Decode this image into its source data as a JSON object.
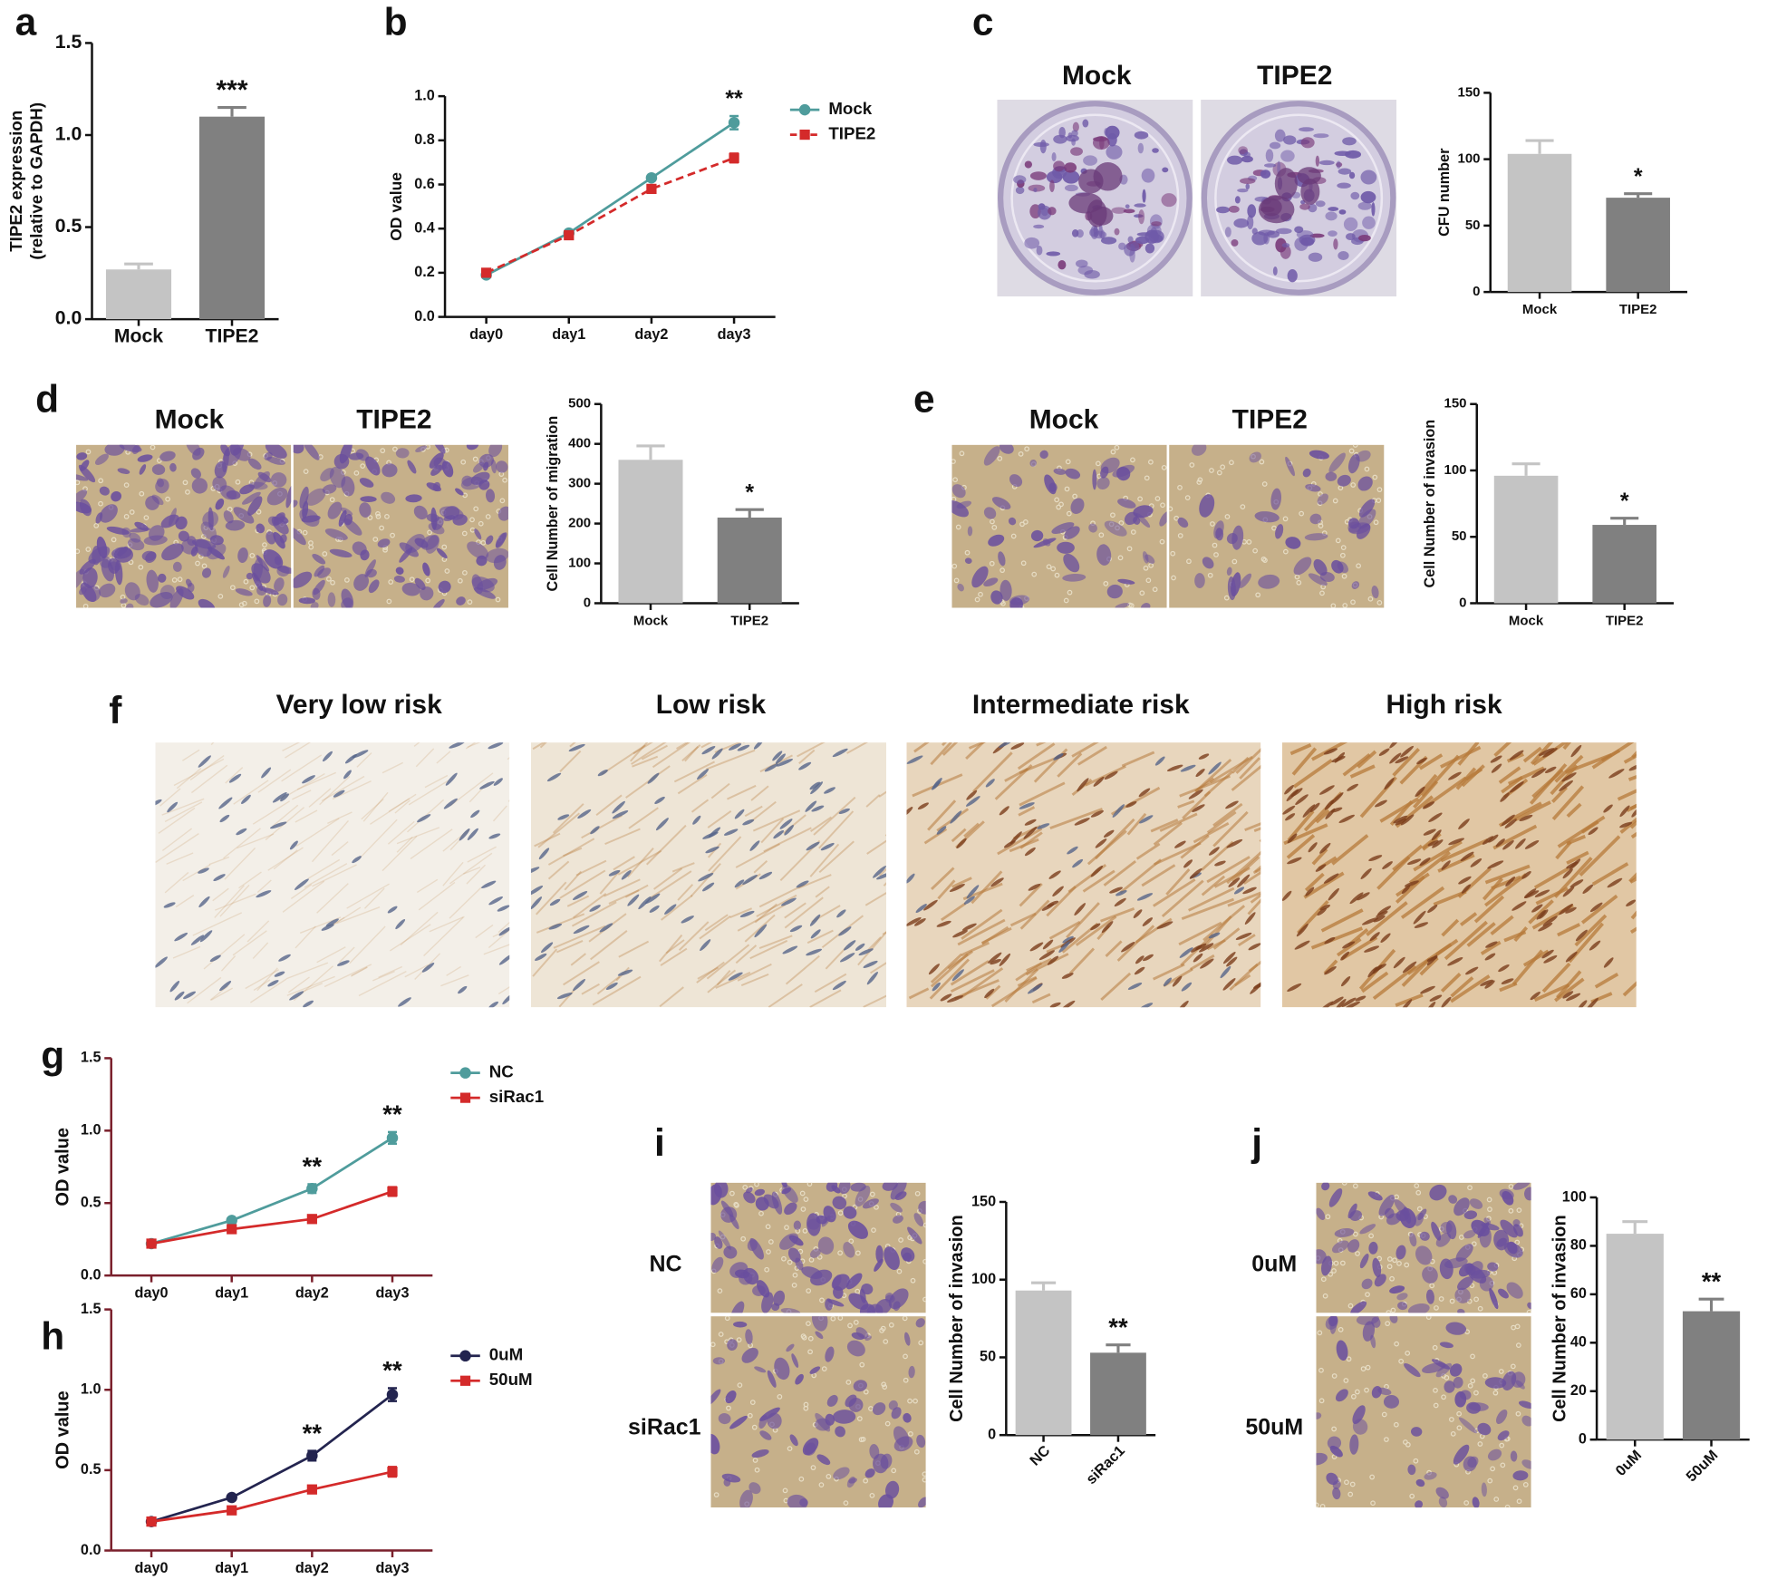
{
  "panel_labels": [
    "a",
    "b",
    "c",
    "d",
    "e",
    "f",
    "g",
    "h",
    "i",
    "j"
  ],
  "image_captions": {
    "c": [
      "Mock",
      "TIPE2"
    ],
    "d": [
      "Mock",
      "TIPE2"
    ],
    "e": [
      "Mock",
      "TIPE2"
    ],
    "f": [
      "Very low risk",
      "Low risk",
      "Intermediate risk",
      "High risk"
    ],
    "i": [
      "NC",
      "siRac1"
    ],
    "j": [
      "0uM",
      "50uM"
    ]
  },
  "chart_data": [
    {
      "type": "bar",
      "categories": [
        "Mock",
        "TIPE2"
      ],
      "values": [
        0.27,
        1.1
      ],
      "errors": [
        0.03,
        0.05
      ],
      "colors": [
        "#c4c4c4",
        "#808080"
      ],
      "ylim": [
        0,
        1.5
      ],
      "yticks": [
        {
          "value": 0,
          "label": "0.0"
        },
        0.5,
        {
          "value": 1,
          "label": "1.0"
        },
        1.5
      ],
      "ylabel": [
        "TIPE2 expression",
        "(relative to GAPDH)"
      ],
      "sig_labels": [
        null,
        "***"
      ]
    },
    {
      "type": "line",
      "categories": [
        "day0",
        "day1",
        "day2",
        "day3"
      ],
      "series": [
        {
          "name": "Mock",
          "color": "#4f9c9c",
          "marker": "circle",
          "values": [
            0.19,
            0.38,
            0.63,
            0.88
          ],
          "errors": [
            0.01,
            0.01,
            0.01,
            0.03
          ]
        },
        {
          "name": "TIPE2",
          "color": "#d42a2a",
          "marker": "square",
          "dashed": true,
          "values": [
            0.2,
            0.37,
            0.58,
            0.72
          ],
          "errors": [
            0.01,
            0.01,
            0.01,
            0.02
          ]
        }
      ],
      "ylim": [
        0,
        1
      ],
      "yticks": [
        {
          "value": 0,
          "label": "0.0"
        },
        0.2,
        0.4,
        0.6,
        0.8,
        {
          "value": 1,
          "label": "1.0"
        }
      ],
      "ylabel": "OD value",
      "sig_labels": [
        null,
        null,
        null,
        "**"
      ]
    },
    {
      "type": "bar",
      "categories": [
        "Mock",
        "TIPE2"
      ],
      "values": [
        104,
        71
      ],
      "errors": [
        10,
        3
      ],
      "colors": [
        "#c4c4c4",
        "#808080"
      ],
      "ylim": [
        0,
        150
      ],
      "yticks": [
        0,
        50,
        100,
        150
      ],
      "ylabel": "CFU number",
      "sig_labels": [
        null,
        "*"
      ]
    },
    {
      "type": "bar",
      "categories": [
        "Mock",
        "TIPE2"
      ],
      "values": [
        360,
        215
      ],
      "errors": [
        35,
        20
      ],
      "colors": [
        "#c4c4c4",
        "#808080"
      ],
      "ylim": [
        0,
        500
      ],
      "yticks": [
        0,
        100,
        200,
        300,
        400,
        500
      ],
      "ylabel": "Cell Number of migration",
      "sig_labels": [
        null,
        "*"
      ]
    },
    {
      "type": "bar",
      "categories": [
        "Mock",
        "TIPE2"
      ],
      "values": [
        96,
        59
      ],
      "errors": [
        9,
        5
      ],
      "colors": [
        "#c4c4c4",
        "#808080"
      ],
      "ylim": [
        0,
        150
      ],
      "yticks": [
        0,
        50,
        100,
        150
      ],
      "ylabel": "Cell Number of invasion",
      "sig_labels": [
        null,
        "*"
      ]
    },
    {
      "type": "line",
      "categories": [
        "day0",
        "day1",
        "day2",
        "day3"
      ],
      "series": [
        {
          "name": "NC",
          "color": "#4f9c9c",
          "marker": "circle",
          "values": [
            0.22,
            0.38,
            0.6,
            0.95
          ],
          "errors": [
            0.01,
            0.01,
            0.03,
            0.04
          ]
        },
        {
          "name": "siRac1",
          "color": "#d42a2a",
          "marker": "square",
          "values": [
            0.22,
            0.32,
            0.39,
            0.58
          ],
          "errors": [
            0.01,
            0.01,
            0.01,
            0.03
          ]
        }
      ],
      "ylim": [
        0,
        1.5
      ],
      "yticks": [
        {
          "value": 0,
          "label": "0.0"
        },
        0.5,
        {
          "value": 1,
          "label": "1.0"
        },
        1.5
      ],
      "ylabel": "OD value",
      "sig_labels": [
        null,
        null,
        "**",
        "**"
      ],
      "axis_color": "#7a1f2b"
    },
    {
      "type": "line",
      "categories": [
        "day0",
        "day1",
        "day2",
        "day3"
      ],
      "series": [
        {
          "name": "0uM",
          "color": "#23244f",
          "marker": "circle",
          "values": [
            0.18,
            0.33,
            0.59,
            0.97
          ],
          "errors": [
            0.01,
            0.01,
            0.03,
            0.04
          ]
        },
        {
          "name": "50uM",
          "color": "#d42a2a",
          "marker": "square",
          "values": [
            0.18,
            0.25,
            0.38,
            0.49
          ],
          "errors": [
            0.01,
            0.01,
            0.01,
            0.03
          ]
        }
      ],
      "ylim": [
        0,
        1.5
      ],
      "yticks": [
        {
          "value": 0,
          "label": "0.0"
        },
        0.5,
        {
          "value": 1,
          "label": "1.0"
        },
        1.5
      ],
      "ylabel": "OD value",
      "sig_labels": [
        null,
        null,
        "**",
        "**"
      ],
      "axis_color": "#7a1f2b"
    },
    {
      "type": "bar",
      "categories": [
        "NC",
        "siRac1"
      ],
      "values": [
        93,
        53
      ],
      "errors": [
        5,
        5
      ],
      "colors": [
        "#c4c4c4",
        "#808080"
      ],
      "ylim": [
        0,
        150
      ],
      "yticks": [
        0,
        50,
        100,
        150
      ],
      "ylabel": "Cell Number of invasion",
      "sig_labels": [
        null,
        "**"
      ]
    },
    {
      "type": "bar",
      "categories": [
        "0uM",
        "50uM"
      ],
      "values": [
        85,
        53
      ],
      "errors": [
        5,
        5
      ],
      "colors": [
        "#c4c4c4",
        "#808080"
      ],
      "ylim": [
        0,
        100
      ],
      "yticks": [
        0,
        20,
        40,
        60,
        80,
        100
      ],
      "ylabel": "Cell Number of invasion",
      "sig_labels": [
        null,
        "**"
      ]
    }
  ]
}
